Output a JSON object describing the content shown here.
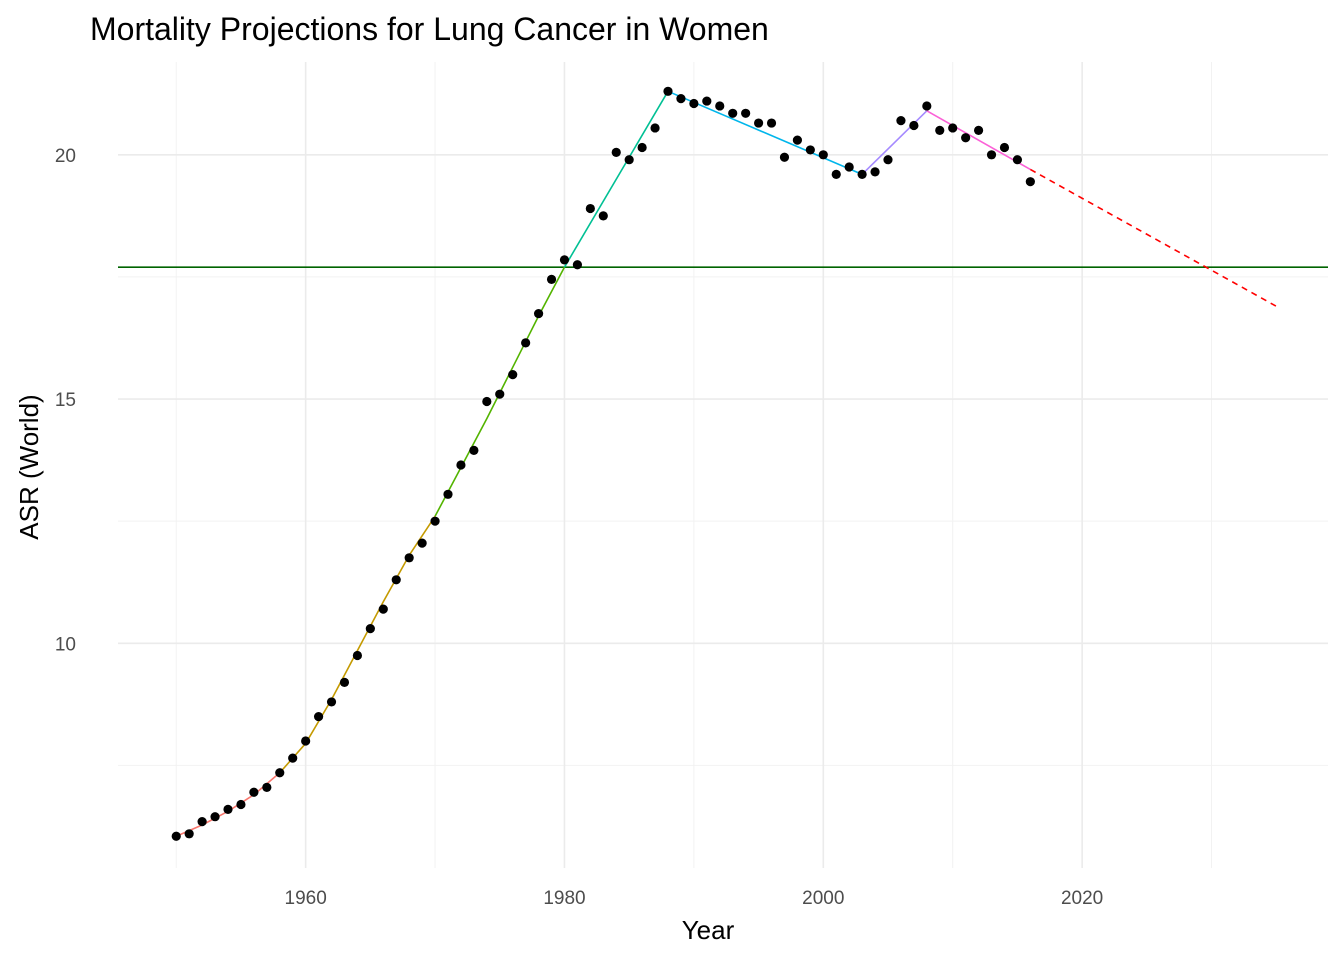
{
  "chart_data": {
    "type": "line",
    "title": "Mortality Projections for Lung Cancer in Women",
    "xlabel": "Year",
    "ylabel": "ASR (World)",
    "xlim": [
      1945.5,
      2039
    ],
    "ylim": [
      5.4,
      21.9
    ],
    "x_ticks": [
      1960,
      1980,
      2000,
      2020
    ],
    "x_tick_labels": [
      "1960",
      "1980",
      "2000",
      "2020"
    ],
    "x_minor_ticks": [
      1950,
      1970,
      1990,
      2010,
      2030
    ],
    "y_ticks": [
      10,
      15,
      20
    ],
    "y_tick_labels": [
      "10",
      "15",
      "20"
    ],
    "y_minor_ticks": [
      7.5,
      12.5,
      17.5
    ],
    "grid": true,
    "legend": "none",
    "observed": {
      "x": [
        1950,
        1951,
        1952,
        1953,
        1954,
        1955,
        1956,
        1957,
        1958,
        1959,
        1960,
        1961,
        1962,
        1963,
        1964,
        1965,
        1966,
        1967,
        1968,
        1969,
        1970,
        1971,
        1972,
        1973,
        1974,
        1975,
        1976,
        1977,
        1978,
        1979,
        1980,
        1981,
        1982,
        1983,
        1984,
        1985,
        1986,
        1987,
        1988,
        1989,
        1990,
        1991,
        1992,
        1993,
        1994,
        1995,
        1996,
        1997,
        1998,
        1999,
        2000,
        2001,
        2002,
        2003,
        2004,
        2005,
        2006,
        2007,
        2008,
        2009,
        2010,
        2011,
        2012,
        2013,
        2014,
        2015,
        2016
      ],
      "y": [
        6.05,
        6.1,
        6.35,
        6.45,
        6.6,
        6.7,
        6.95,
        7.05,
        7.35,
        7.65,
        8.0,
        8.5,
        8.8,
        9.2,
        9.75,
        10.3,
        10.7,
        11.3,
        11.75,
        12.05,
        12.5,
        13.05,
        13.65,
        13.95,
        14.95,
        15.1,
        15.5,
        16.15,
        16.75,
        17.45,
        17.85,
        17.75,
        18.9,
        18.75,
        20.05,
        19.9,
        20.15,
        20.55,
        21.3,
        21.15,
        21.05,
        21.1,
        21.0,
        20.85,
        20.85,
        20.65,
        20.65,
        19.95,
        20.3,
        20.1,
        20.0,
        19.6,
        19.75,
        19.6,
        19.65,
        19.9,
        20.7,
        20.6,
        21.0,
        20.5,
        20.55,
        20.35,
        20.5,
        20.0,
        20.15,
        19.9,
        19.45
      ]
    },
    "fitted_segments": [
      {
        "color": "#f8766d",
        "x": [
          1950,
          1952,
          1954,
          1956,
          1958
        ],
        "y": [
          6.05,
          6.28,
          6.56,
          6.9,
          7.35
        ]
      },
      {
        "color": "#c49a00",
        "x": [
          1958,
          1960,
          1962,
          1964,
          1966,
          1968,
          1970
        ],
        "y": [
          7.35,
          7.95,
          8.85,
          9.85,
          10.85,
          11.8,
          12.6
        ]
      },
      {
        "color": "#53b400",
        "x": [
          1970,
          1972,
          1974,
          1976,
          1978,
          1980
        ],
        "y": [
          12.6,
          13.6,
          14.6,
          15.65,
          16.7,
          17.7
        ]
      },
      {
        "color": "#00c094",
        "x": [
          1980,
          1988
        ],
        "y": [
          17.7,
          21.3
        ]
      },
      {
        "color": "#00b6eb",
        "x": [
          1988,
          2003
        ],
        "y": [
          21.3,
          19.6
        ]
      },
      {
        "color": "#a58aff",
        "x": [
          2003,
          2008
        ],
        "y": [
          19.6,
          20.9
        ]
      },
      {
        "color": "#fb61d7",
        "x": [
          2008,
          2016
        ],
        "y": [
          20.9,
          19.7
        ]
      }
    ],
    "projection": {
      "color": "#ff0000",
      "style": "dashed",
      "x": [
        2016,
        2035
      ],
      "y": [
        19.7,
        16.9
      ]
    },
    "reference_line": {
      "color": "#006400",
      "y": 17.7
    }
  }
}
